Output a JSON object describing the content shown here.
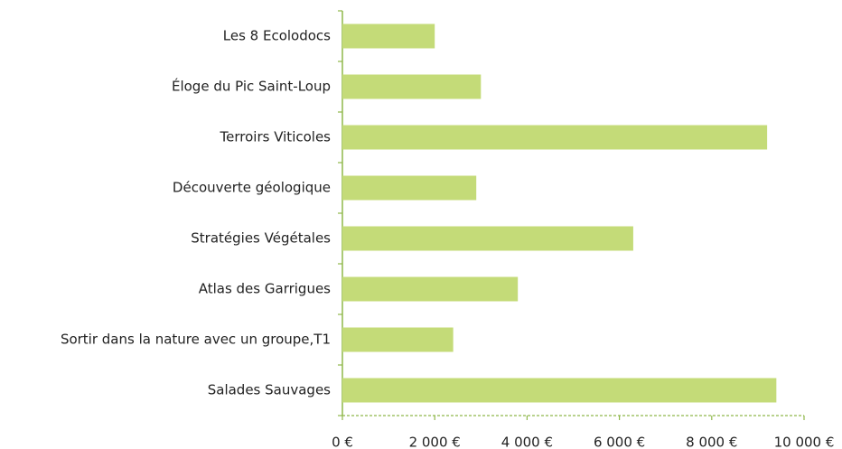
{
  "chart_data": {
    "type": "bar",
    "orientation": "horizontal",
    "categories": [
      "Les 8 Ecolodocs",
      "Éloge du Pic Saint-Loup",
      "Terroirs Viticoles",
      "Découverte géologique",
      "Stratégies Végétales",
      "Atlas des Garrigues",
      "Sortir dans la nature avec un groupe,T1",
      "Salades Sauvages"
    ],
    "values": [
      2000,
      3000,
      9200,
      2900,
      6300,
      3800,
      2400,
      9400
    ],
    "color": "#c4db78",
    "xlim": [
      0,
      10000
    ],
    "xticks": [
      {
        "value": 0,
        "label": "0 €"
      },
      {
        "value": 2000,
        "label": "2 000 €"
      },
      {
        "value": 4000,
        "label": "4 000 €"
      },
      {
        "value": 6000,
        "label": "6 000 €"
      },
      {
        "value": 8000,
        "label": "8 000 €"
      },
      {
        "value": 10000,
        "label": "10 000 €"
      }
    ],
    "grid": false
  }
}
